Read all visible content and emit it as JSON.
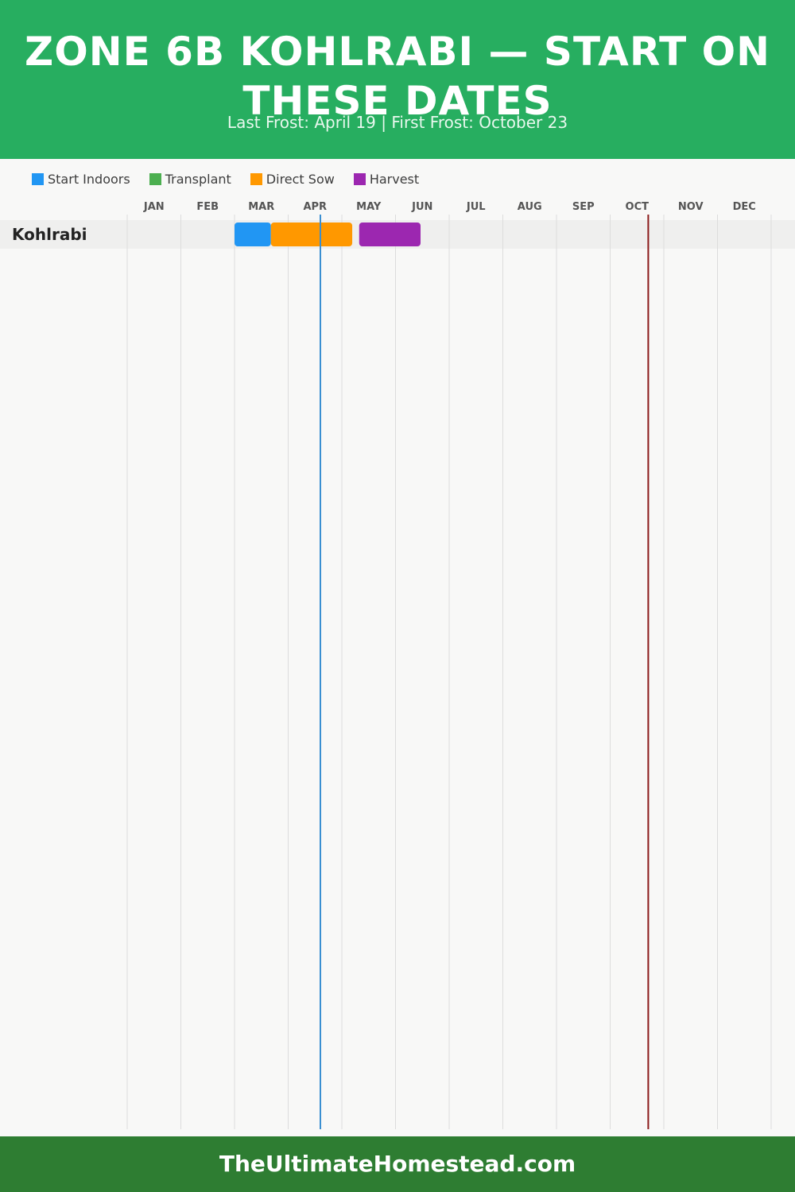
{
  "header": {
    "title": "ZONE 6B KOHLRABI — START ON THESE DATES",
    "subtitle": "Last Frost: April 19 | First Frost: October 23"
  },
  "legend": [
    {
      "label": "Start Indoors",
      "color": "#2196f3"
    },
    {
      "label": "Transplant",
      "color": "#4caf50"
    },
    {
      "label": "Direct Sow",
      "color": "#ff9800"
    },
    {
      "label": "Harvest",
      "color": "#9c27b0"
    }
  ],
  "chart_data": {
    "type": "gantt",
    "title": "ZONE 6B KOHLRABI — START ON THESE DATES",
    "months": [
      "JAN",
      "FEB",
      "MAR",
      "APR",
      "MAY",
      "JUN",
      "JUL",
      "AUG",
      "SEP",
      "OCT",
      "NOV",
      "DEC"
    ],
    "markers": [
      {
        "date": "04-19",
        "color": "#3a8fd1",
        "label": "Last Frost: April 19"
      },
      {
        "date": "10-23",
        "color": "#8b1a1a",
        "label": "First Frost: October 23"
      }
    ],
    "rows": [
      {
        "name": "Kohlrabi",
        "tasks": [
          {
            "phase": "Start Indoors",
            "start": "03-01",
            "end": "03-22",
            "color": "#2196f3"
          },
          {
            "phase": "Direct Sow",
            "start": "03-22",
            "end": "05-07",
            "color": "#ff9800"
          },
          {
            "phase": "Harvest",
            "start": "05-11",
            "end": "06-15",
            "color": "#9c27b0"
          }
        ]
      }
    ]
  },
  "footer": {
    "text": "TheUltimateHomestead.com"
  }
}
